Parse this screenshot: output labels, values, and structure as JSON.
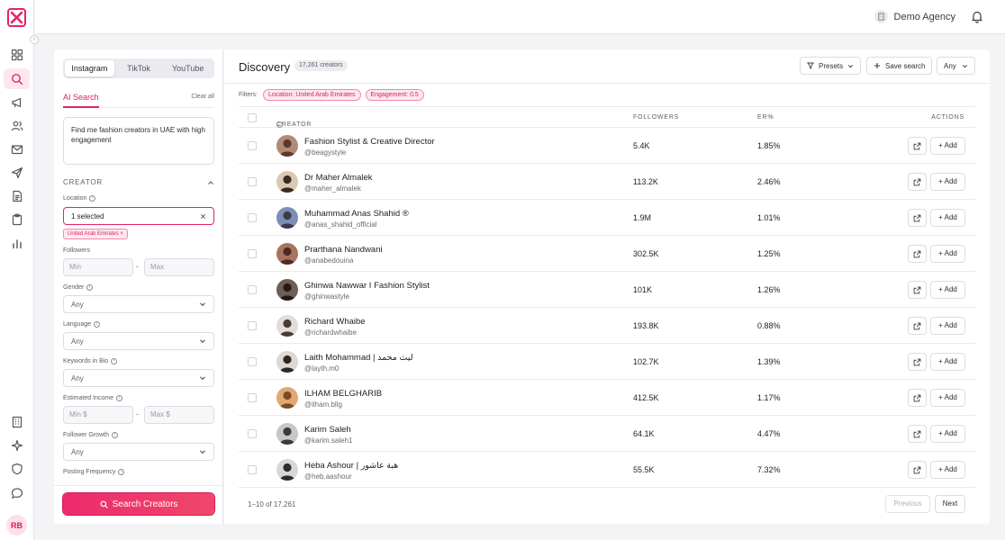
{
  "header": {
    "agency": "Demo Agency"
  },
  "filters_panel": {
    "tabs": [
      "Instagram",
      "TikTok",
      "YouTube"
    ],
    "ai_search_label": "AI Search",
    "clear_all": "Clear all",
    "ai_prompt": "Find me fashion creators in UAE with high engagement",
    "section_title": "CREATOR",
    "location_label": "Location",
    "location_value": "1 selected",
    "location_chip": "United Arab Emirates ×",
    "followers_label": "Followers",
    "followers_min": "Min",
    "followers_max": "Max",
    "gender_label": "Gender",
    "gender_value": "Any",
    "language_label": "Language",
    "language_value": "Any",
    "keywords_label": "Keywords in Bio",
    "keywords_value": "Any",
    "income_label": "Estimated Income",
    "income_min": "Min $",
    "income_max": "Max $",
    "growth_label": "Follower Growth",
    "growth_value": "Any",
    "posting_label": "Posting Frequency",
    "search_button": "Search Creators"
  },
  "discovery": {
    "title": "Discovery",
    "count": "17,261 creators",
    "presets": "Presets",
    "save_search": "Save search",
    "any": "Any",
    "filters_label": "Filters:",
    "active_filters": [
      "Location: United Arab Emirates",
      "Engagement: 0.5"
    ],
    "columns": {
      "creator": "CREATOR",
      "followers": "FOLLOWERS",
      "er": "ER%",
      "actions": "ACTIONS"
    },
    "add_label": "+ Add",
    "rows": [
      {
        "name": "Fashion Stylist & Creative Director",
        "handle": "@beagystyle",
        "followers": "5.4K",
        "er": "1.85%"
      },
      {
        "name": "Dr Maher Almalek",
        "handle": "@maher_almalek",
        "followers": "113.2K",
        "er": "2.46%"
      },
      {
        "name": "Muhammad Anas Shahid ®",
        "handle": "@anas_shahid_official",
        "followers": "1.9M",
        "er": "1.01%"
      },
      {
        "name": "Prarthana Nandwani",
        "handle": "@anabedouina",
        "followers": "302.5K",
        "er": "1.25%"
      },
      {
        "name": "Ghinwa Nawwar I Fashion Stylist",
        "handle": "@ghinwastyle",
        "followers": "101K",
        "er": "1.26%"
      },
      {
        "name": "Richard Whaibe",
        "handle": "@richardwhaibe",
        "followers": "193.8K",
        "er": "0.88%"
      },
      {
        "name": "Laith Mohammad | ليث محمد",
        "handle": "@layth.m0",
        "followers": "102.7K",
        "er": "1.39%"
      },
      {
        "name": "ILHAM BELGHARIB",
        "handle": "@ilham.bllg",
        "followers": "412.5K",
        "er": "1.17%"
      },
      {
        "name": "Karim Saleh",
        "handle": "@karim.saleh1",
        "followers": "64.1K",
        "er": "4.47%"
      },
      {
        "name": "Heba Ashour | هبة عاشور",
        "handle": "@heb.aashour",
        "followers": "55.5K",
        "er": "7.32%"
      }
    ],
    "pagination": {
      "summary": "1–10 of 17,261",
      "previous": "Previous",
      "next": "Next"
    }
  },
  "user": {
    "initials": "RB"
  },
  "colors": {
    "accent": "#e5245f"
  }
}
